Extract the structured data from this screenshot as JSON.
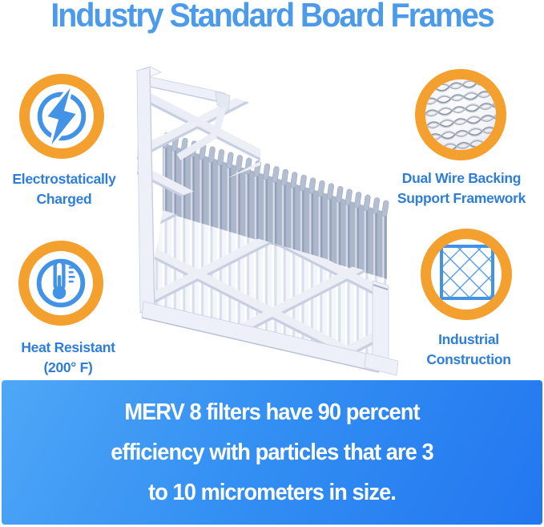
{
  "title": "Industry Standard Board Frames",
  "features": [
    {
      "name": "electrostatically-charged",
      "icon": "lightning-bolt-icon",
      "lines": [
        "Electrostatically",
        "Charged"
      ]
    },
    {
      "name": "dual-wire-backing",
      "icon": "wire-mesh-icon",
      "lines": [
        "Dual Wire Backing",
        "Support Framework"
      ]
    },
    {
      "name": "heat-resistant",
      "icon": "thermometer-icon",
      "lines": [
        "Heat Resistant",
        "(200° F)"
      ]
    },
    {
      "name": "industrial-construction",
      "icon": "diamond-lattice-icon",
      "lines": [
        "Industrial",
        "Construction"
      ]
    }
  ],
  "banner": {
    "lines": [
      "MERV 8 filters have 90 percent",
      "efficiency with particles that are 3",
      "to 10 micrometers in size."
    ]
  },
  "colors": {
    "title_blue": "#4C9BEB",
    "label_blue": "#2E7ED8",
    "ring_orange": "#F3A02E",
    "icon_blue": "#4293E6",
    "banner_gradient_start": "#4FA7F6",
    "banner_gradient_end": "#2277EF",
    "banner_text": "#FFFFFF"
  }
}
